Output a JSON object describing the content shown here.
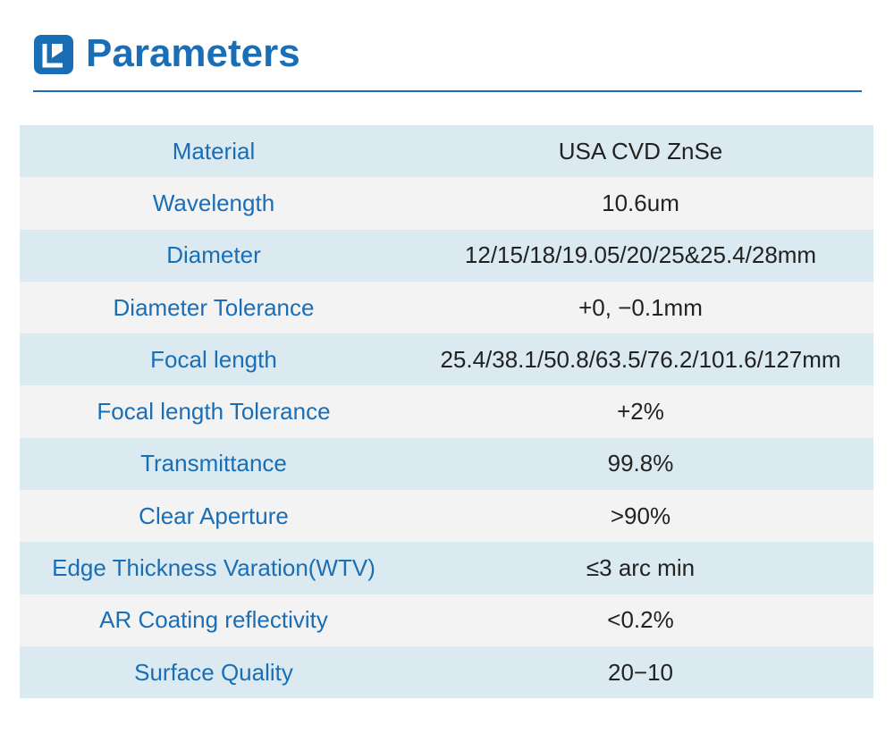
{
  "header": {
    "title": "Parameters"
  },
  "table": {
    "rows": [
      [
        "Material",
        "USA CVD ZnSe"
      ],
      [
        "Wavelength",
        "10.6um"
      ],
      [
        "Diameter",
        "12/15/18/19.05/20/25&25.4/28mm"
      ],
      [
        "Diameter Tolerance",
        "+0,  −0.1mm"
      ],
      [
        "Focal length",
        "25.4/38.1/50.8/63.5/76.2/101.6/127mm"
      ],
      [
        "Focal length Tolerance",
        "+2%"
      ],
      [
        "Transmittance",
        "99.8%"
      ],
      [
        "Clear Aperture",
        ">90%"
      ],
      [
        "Edge Thickness Varation(WTV)",
        "≤3 arc min"
      ],
      [
        "AR Coating reflectivity",
        "<0.2%"
      ],
      [
        "Surface Quality",
        "20−10"
      ]
    ]
  }
}
